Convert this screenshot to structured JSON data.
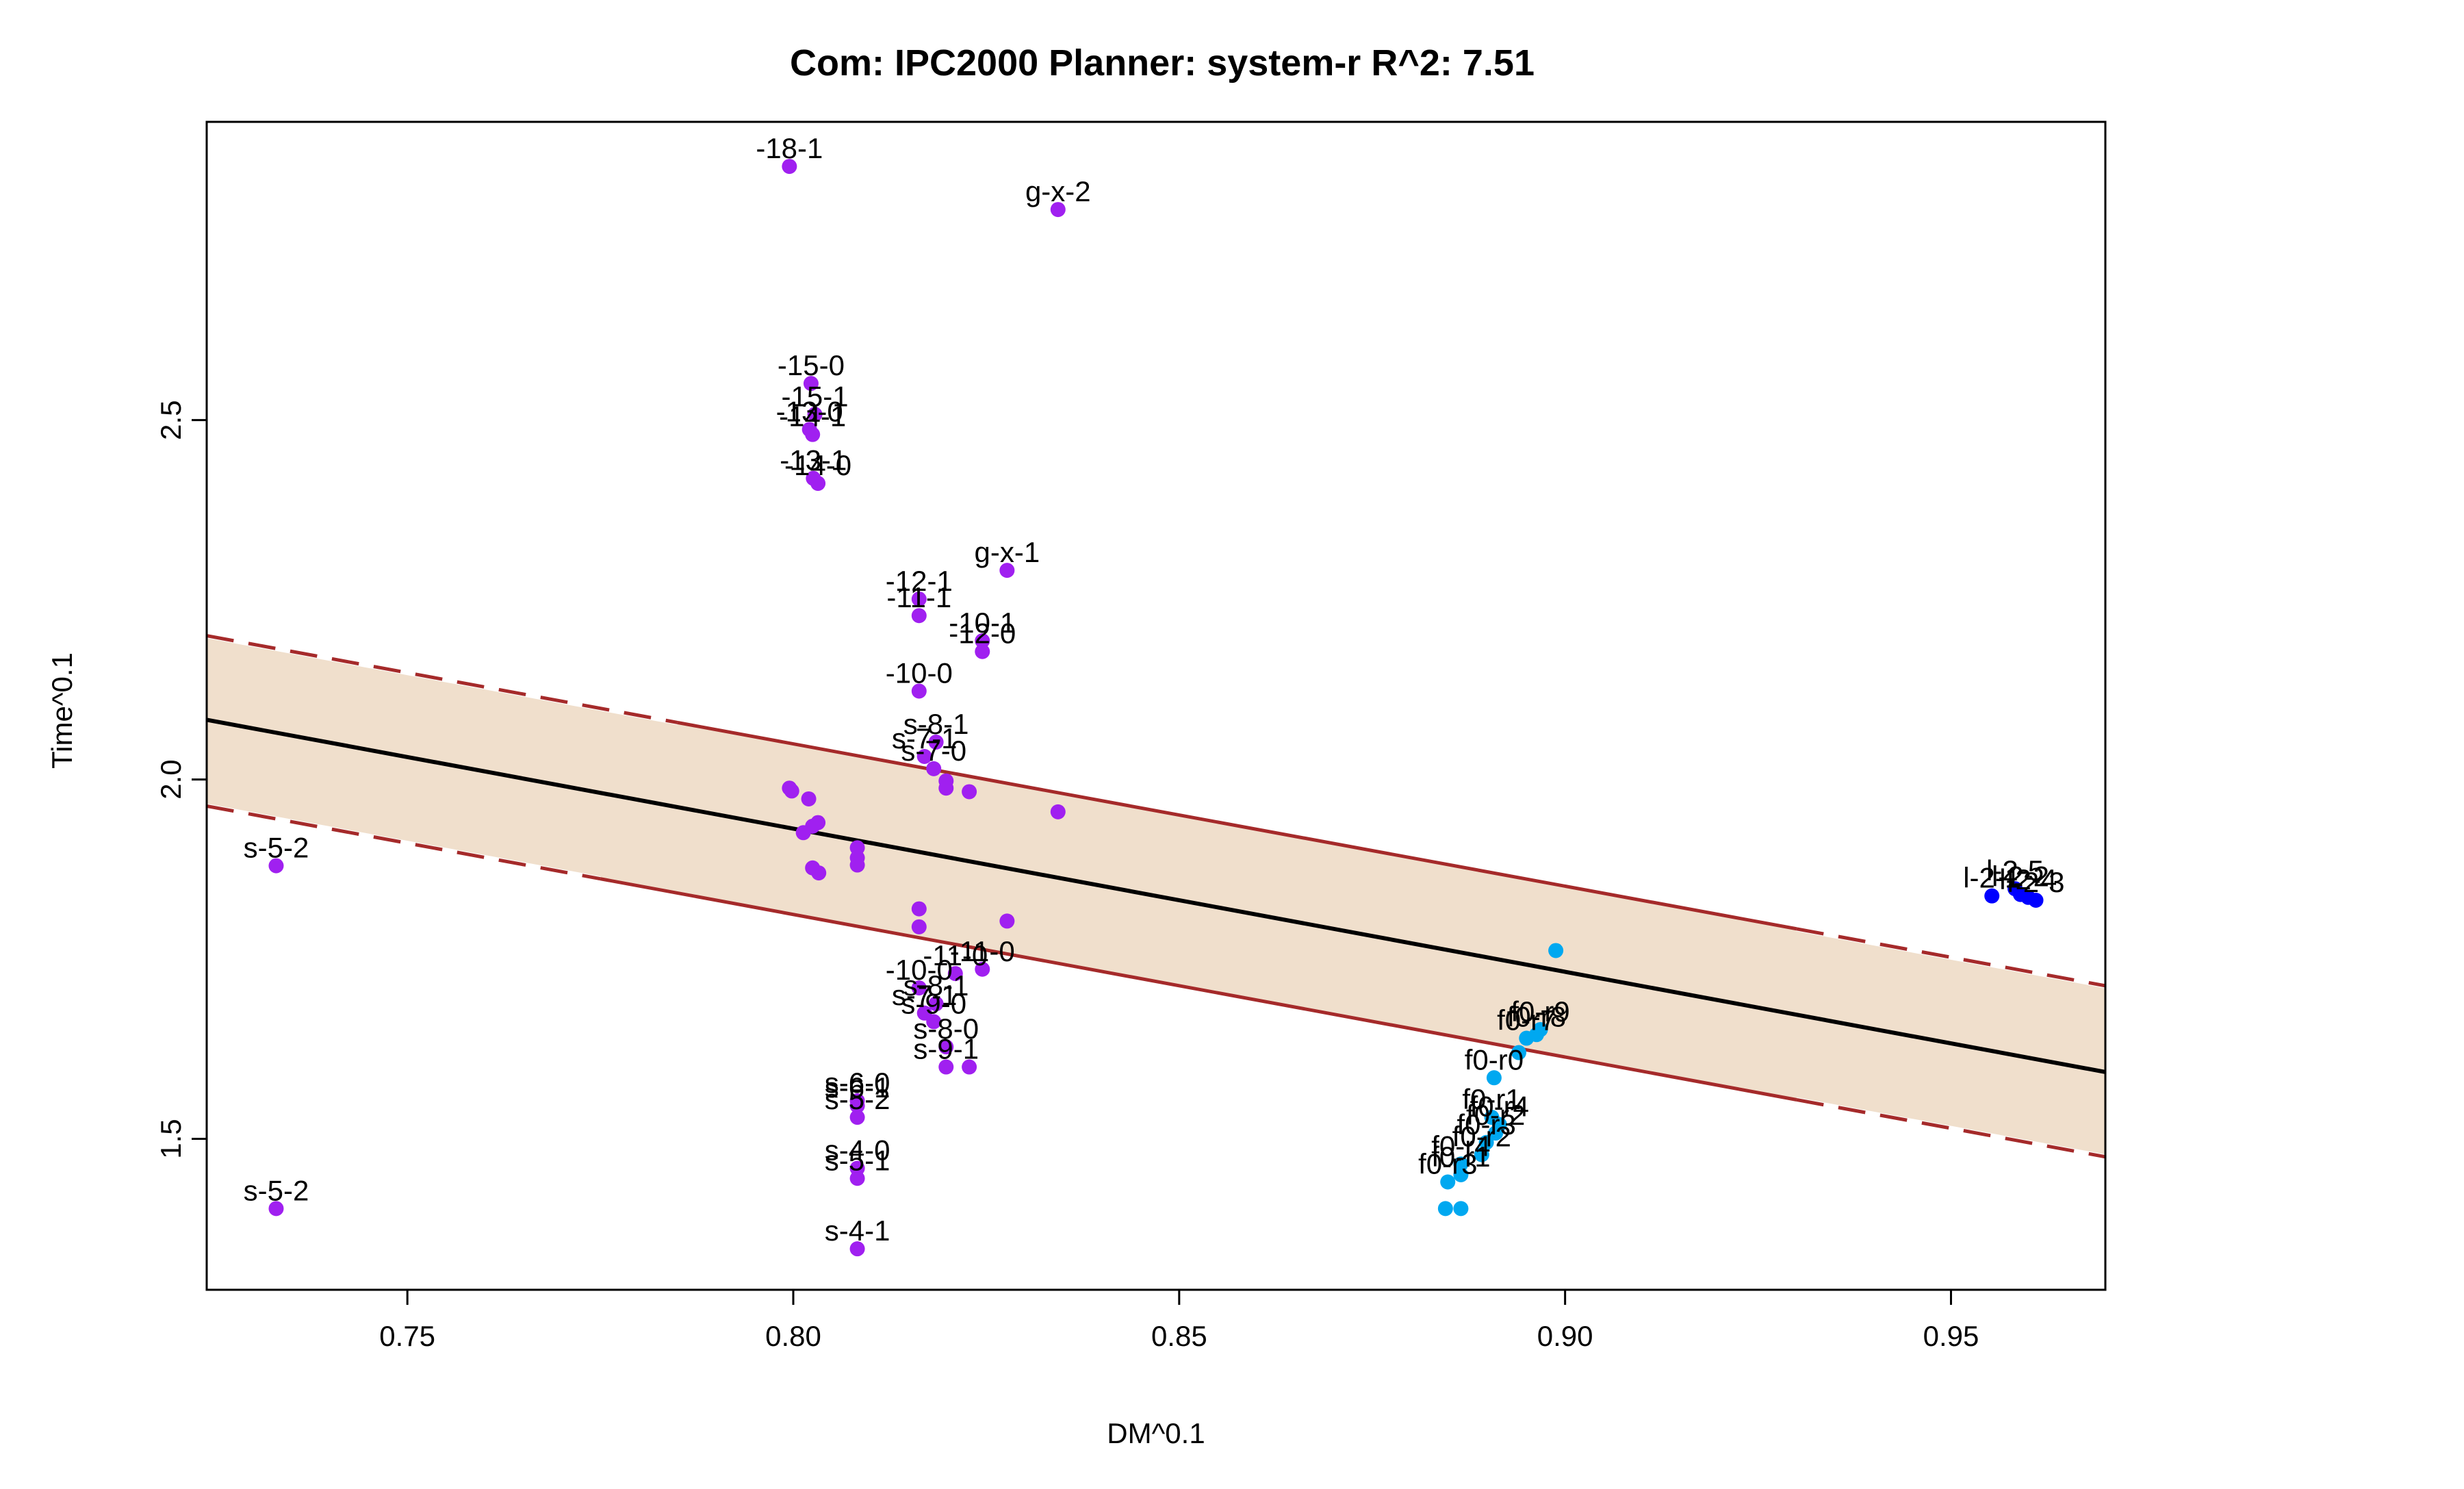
{
  "chart_data": {
    "type": "scatter",
    "title": "Com: IPC2000 Planner: system-r R^2: 7.51",
    "xlabel": "DM^0.1",
    "ylabel": "Time^0.1",
    "xlim": [
      0.724,
      0.97
    ],
    "ylim": [
      1.29,
      2.915
    ],
    "xticks": [
      0.75,
      0.8,
      0.85,
      0.9,
      0.95
    ],
    "xtick_labels": [
      "0.75",
      "0.80",
      "0.85",
      "0.90",
      "0.95"
    ],
    "yticks": [
      1.5,
      2.0,
      2.5
    ],
    "ytick_labels": [
      "1.5",
      "2.0",
      "2.5"
    ],
    "grid": false,
    "legend": "none",
    "colors": {
      "purple": "#a020f0",
      "lightblue": "#00a8f0",
      "blue": "#0000ff",
      "regression": "#000000",
      "band": "#f0dfcc",
      "band_edge": "#a52a2a"
    },
    "regression": {
      "x": [
        0.724,
        0.97
      ],
      "y": [
        2.083,
        1.593
      ]
    },
    "band_upper": {
      "x": [
        0.724,
        0.97
      ],
      "y": [
        2.2,
        1.713
      ]
    },
    "band_lower": {
      "x": [
        0.724,
        0.97
      ],
      "y": [
        1.963,
        1.475
      ]
    },
    "points": [
      {
        "x": 0.7995,
        "y": 2.853,
        "c": "purple",
        "label": "-18-1"
      },
      {
        "x": 0.8343,
        "y": 2.793,
        "c": "purple",
        "label": "g-x-2"
      },
      {
        "x": 0.8023,
        "y": 2.551,
        "c": "purple",
        "label": "-15-0"
      },
      {
        "x": 0.8028,
        "y": 2.508,
        "c": "purple",
        "label": "-15-1"
      },
      {
        "x": 0.8021,
        "y": 2.487,
        "c": "purple",
        "label": "-13-0"
      },
      {
        "x": 0.8025,
        "y": 2.48,
        "c": "purple",
        "label": "-14-1"
      },
      {
        "x": 0.8026,
        "y": 2.419,
        "c": "purple",
        "label": "-13-1"
      },
      {
        "x": 0.8032,
        "y": 2.412,
        "c": "purple",
        "label": "-14-0"
      },
      {
        "x": 0.8277,
        "y": 2.291,
        "c": "purple",
        "label": "g-x-1"
      },
      {
        "x": 0.8163,
        "y": 2.251,
        "c": "purple",
        "label": "-12-1"
      },
      {
        "x": 0.8163,
        "y": 2.228,
        "c": "purple",
        "label": "-11-1"
      },
      {
        "x": 0.8245,
        "y": 2.193,
        "c": "purple",
        "label": "-10-1"
      },
      {
        "x": 0.8245,
        "y": 2.178,
        "c": "purple",
        "label": "-12-0"
      },
      {
        "x": 0.8163,
        "y": 2.123,
        "c": "purple",
        "label": "-10-0"
      },
      {
        "x": 0.8185,
        "y": 2.052,
        "c": "purple",
        "label": "s-8-1"
      },
      {
        "x": 0.817,
        "y": 2.032,
        "c": "purple",
        "label": "s-7-1"
      },
      {
        "x": 0.8182,
        "y": 2.015,
        "c": "purple",
        "label": "s-7-0"
      },
      {
        "x": 0.7995,
        "y": 1.988,
        "c": "purple",
        "label": ""
      },
      {
        "x": 0.7998,
        "y": 1.984,
        "c": "purple",
        "label": ""
      },
      {
        "x": 0.8198,
        "y": 1.998,
        "c": "purple",
        "label": ""
      },
      {
        "x": 0.8198,
        "y": 1.988,
        "c": "purple",
        "label": ""
      },
      {
        "x": 0.8228,
        "y": 1.983,
        "c": "purple",
        "label": ""
      },
      {
        "x": 0.802,
        "y": 1.973,
        "c": "purple",
        "label": ""
      },
      {
        "x": 0.8343,
        "y": 1.955,
        "c": "purple",
        "label": ""
      },
      {
        "x": 0.8032,
        "y": 1.94,
        "c": "purple",
        "label": ""
      },
      {
        "x": 0.8025,
        "y": 1.935,
        "c": "purple",
        "label": ""
      },
      {
        "x": 0.8013,
        "y": 1.926,
        "c": "purple",
        "label": ""
      },
      {
        "x": 0.8083,
        "y": 1.905,
        "c": "purple",
        "label": ""
      },
      {
        "x": 0.8083,
        "y": 1.891,
        "c": "purple",
        "label": ""
      },
      {
        "x": 0.8083,
        "y": 1.881,
        "c": "purple",
        "label": ""
      },
      {
        "x": 0.8025,
        "y": 1.877,
        "c": "purple",
        "label": ""
      },
      {
        "x": 0.8033,
        "y": 1.87,
        "c": "purple",
        "label": ""
      },
      {
        "x": 0.733,
        "y": 1.88,
        "c": "purple",
        "label": "s-5-2"
      },
      {
        "x": 0.8163,
        "y": 1.82,
        "c": "purple",
        "label": ""
      },
      {
        "x": 0.8277,
        "y": 1.803,
        "c": "purple",
        "label": ""
      },
      {
        "x": 0.8163,
        "y": 1.795,
        "c": "purple",
        "label": ""
      },
      {
        "x": 0.8245,
        "y": 1.736,
        "c": "purple",
        "label": "-11-0"
      },
      {
        "x": 0.821,
        "y": 1.73,
        "c": "purple",
        "label": "-11-0"
      },
      {
        "x": 0.8163,
        "y": 1.71,
        "c": "purple",
        "label": "-10-0"
      },
      {
        "x": 0.8185,
        "y": 1.688,
        "c": "purple",
        "label": "s-8-1"
      },
      {
        "x": 0.817,
        "y": 1.675,
        "c": "purple",
        "label": "s-7-1"
      },
      {
        "x": 0.8182,
        "y": 1.663,
        "c": "purple",
        "label": "s-9-0"
      },
      {
        "x": 0.8198,
        "y": 1.628,
        "c": "purple",
        "label": "s-8-0"
      },
      {
        "x": 0.8198,
        "y": 1.6,
        "c": "purple",
        "label": "s-9-1"
      },
      {
        "x": 0.8228,
        "y": 1.6,
        "c": "purple",
        "label": ""
      },
      {
        "x": 0.8083,
        "y": 1.553,
        "c": "purple",
        "label": "s-6-0"
      },
      {
        "x": 0.8083,
        "y": 1.546,
        "c": "purple",
        "label": "s-6-1"
      },
      {
        "x": 0.8083,
        "y": 1.53,
        "c": "purple",
        "label": "s-5-2"
      },
      {
        "x": 0.8083,
        "y": 1.459,
        "c": "purple",
        "label": "s-4-0"
      },
      {
        "x": 0.8083,
        "y": 1.445,
        "c": "purple",
        "label": "s-5-1"
      },
      {
        "x": 0.733,
        "y": 1.403,
        "c": "purple",
        "label": "s-5-2"
      },
      {
        "x": 0.8083,
        "y": 1.347,
        "c": "purple",
        "label": "s-4-1"
      },
      {
        "x": 0.8988,
        "y": 1.762,
        "c": "lightblue",
        "label": ""
      },
      {
        "x": 0.8968,
        "y": 1.652,
        "c": "lightblue",
        "label": "f0-r9"
      },
      {
        "x": 0.8963,
        "y": 1.645,
        "c": "lightblue",
        "label": "f0-r8"
      },
      {
        "x": 0.895,
        "y": 1.64,
        "c": "lightblue",
        "label": "f0-r7"
      },
      {
        "x": 0.894,
        "y": 1.62,
        "c": "lightblue",
        "label": ""
      },
      {
        "x": 0.8908,
        "y": 1.585,
        "c": "lightblue",
        "label": "f0-r0"
      },
      {
        "x": 0.8905,
        "y": 1.53,
        "c": "lightblue",
        "label": "f0-r1"
      },
      {
        "x": 0.8915,
        "y": 1.52,
        "c": "lightblue",
        "label": "f0-r4"
      },
      {
        "x": 0.891,
        "y": 1.508,
        "c": "lightblue",
        "label": "f0-r2"
      },
      {
        "x": 0.8898,
        "y": 1.495,
        "c": "lightblue",
        "label": "f0-r3"
      },
      {
        "x": 0.8892,
        "y": 1.478,
        "c": "lightblue",
        "label": "f0-r2"
      },
      {
        "x": 0.8865,
        "y": 1.465,
        "c": "lightblue",
        "label": "f0-r4"
      },
      {
        "x": 0.8865,
        "y": 1.45,
        "c": "lightblue",
        "label": "f0-r1"
      },
      {
        "x": 0.8848,
        "y": 1.44,
        "c": "lightblue",
        "label": "f0-r3"
      },
      {
        "x": 0.8845,
        "y": 1.403,
        "c": "lightblue",
        "label": ""
      },
      {
        "x": 0.8865,
        "y": 1.403,
        "c": "lightblue",
        "label": ""
      },
      {
        "x": 0.9553,
        "y": 1.838,
        "c": "blue",
        "label": "l-2-1"
      },
      {
        "x": 0.9583,
        "y": 1.848,
        "c": "blue",
        "label": "l-2-5"
      },
      {
        "x": 0.959,
        "y": 1.84,
        "c": "blue",
        "label": "l-2-2"
      },
      {
        "x": 0.96,
        "y": 1.836,
        "c": "blue",
        "label": "l-2-4"
      },
      {
        "x": 0.961,
        "y": 1.832,
        "c": "blue",
        "label": "l-2-3"
      }
    ]
  }
}
